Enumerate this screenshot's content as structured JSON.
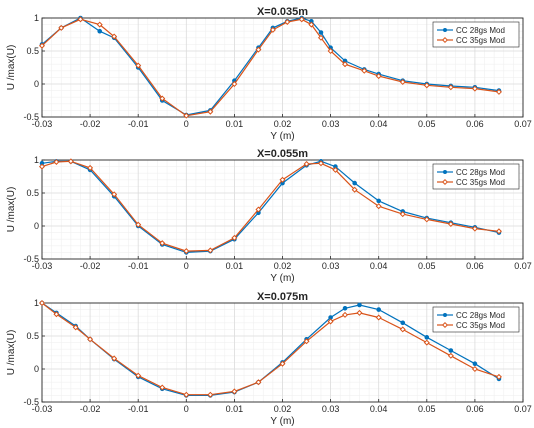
{
  "chart_data": [
    {
      "type": "line",
      "title": "X=0.035m",
      "xlabel": "Y (m)",
      "ylabel": "U /max(U)",
      "xlim": [
        -0.03,
        0.07
      ],
      "ylim": [
        -0.5,
        1
      ],
      "xticks": [
        "-0.03",
        "-0.02",
        "-0.01",
        "0",
        "0.01",
        "0.02",
        "0.03",
        "0.04",
        "0.05",
        "0.06",
        "0.07"
      ],
      "yticks": [
        "-0.5",
        "0",
        "0.5",
        "1"
      ],
      "grid": true,
      "legend_position": "top-right",
      "series": [
        {
          "name": "CC 28gs Mod",
          "color": "#0072BD",
          "marker": "circle",
          "x": [
            -0.03,
            -0.026,
            -0.022,
            -0.018,
            -0.015,
            -0.01,
            -0.005,
            0,
            0.005,
            0.01,
            0.015,
            0.018,
            0.021,
            0.024,
            0.026,
            0.028,
            0.03,
            0.033,
            0.037,
            0.04,
            0.045,
            0.05,
            0.055,
            0.06,
            0.065
          ],
          "y": [
            0.6,
            0.85,
            1.0,
            0.8,
            0.7,
            0.25,
            -0.25,
            -0.47,
            -0.4,
            0.05,
            0.55,
            0.85,
            0.95,
            1.0,
            0.95,
            0.78,
            0.55,
            0.35,
            0.22,
            0.15,
            0.05,
            0.0,
            -0.03,
            -0.05,
            -0.1
          ]
        },
        {
          "name": "CC 35gs Mod",
          "color": "#D95319",
          "marker": "diamond",
          "x": [
            -0.03,
            -0.026,
            -0.022,
            -0.018,
            -0.015,
            -0.01,
            -0.005,
            0,
            0.005,
            0.01,
            0.015,
            0.018,
            0.021,
            0.024,
            0.026,
            0.028,
            0.03,
            0.033,
            0.037,
            0.04,
            0.045,
            0.05,
            0.055,
            0.06,
            0.065
          ],
          "y": [
            0.58,
            0.85,
            0.98,
            0.9,
            0.72,
            0.28,
            -0.22,
            -0.48,
            -0.42,
            0.0,
            0.52,
            0.82,
            0.94,
            0.98,
            0.9,
            0.7,
            0.5,
            0.3,
            0.2,
            0.12,
            0.03,
            -0.02,
            -0.05,
            -0.07,
            -0.12
          ]
        }
      ]
    },
    {
      "type": "line",
      "title": "X=0.055m",
      "xlabel": "Y (m)",
      "ylabel": "U /max(U)",
      "xlim": [
        -0.03,
        0.07
      ],
      "ylim": [
        -0.5,
        1
      ],
      "xticks": [
        "-0.03",
        "-0.02",
        "-0.01",
        "0",
        "0.01",
        "0.02",
        "0.03",
        "0.04",
        "0.05",
        "0.06",
        "0.07"
      ],
      "yticks": [
        "-0.5",
        "0",
        "0.5",
        "1"
      ],
      "grid": true,
      "legend_position": "top-right",
      "series": [
        {
          "name": "CC 28gs Mod",
          "color": "#0072BD",
          "marker": "circle",
          "x": [
            -0.03,
            -0.027,
            -0.024,
            -0.02,
            -0.015,
            -0.01,
            -0.005,
            0,
            0.005,
            0.01,
            0.015,
            0.02,
            0.025,
            0.028,
            0.031,
            0.035,
            0.04,
            0.045,
            0.05,
            0.055,
            0.06,
            0.065
          ],
          "y": [
            0.95,
            0.98,
            0.98,
            0.85,
            0.45,
            0.0,
            -0.28,
            -0.4,
            -0.38,
            -0.2,
            0.2,
            0.65,
            0.92,
            0.98,
            0.9,
            0.65,
            0.38,
            0.22,
            0.12,
            0.05,
            -0.02,
            -0.1
          ]
        },
        {
          "name": "CC 35gs Mod",
          "color": "#D95319",
          "marker": "diamond",
          "x": [
            -0.03,
            -0.027,
            -0.024,
            -0.02,
            -0.015,
            -0.01,
            -0.005,
            0,
            0.005,
            0.01,
            0.015,
            0.02,
            0.025,
            0.028,
            0.031,
            0.035,
            0.04,
            0.045,
            0.05,
            0.055,
            0.06,
            0.065
          ],
          "y": [
            0.9,
            0.97,
            0.98,
            0.88,
            0.48,
            0.02,
            -0.26,
            -0.38,
            -0.37,
            -0.18,
            0.25,
            0.7,
            0.94,
            0.95,
            0.85,
            0.55,
            0.3,
            0.18,
            0.1,
            0.03,
            -0.04,
            -0.08
          ]
        }
      ]
    },
    {
      "type": "line",
      "title": "X=0.075m",
      "xlabel": "Y (m)",
      "ylabel": "U /max(U)",
      "xlim": [
        -0.03,
        0.07
      ],
      "ylim": [
        -0.5,
        1
      ],
      "xticks": [
        "-0.03",
        "-0.02",
        "-0.01",
        "0",
        "0.01",
        "0.02",
        "0.03",
        "0.04",
        "0.05",
        "0.06",
        "0.07"
      ],
      "yticks": [
        "-0.5",
        "0",
        "0.5",
        "1"
      ],
      "grid": true,
      "legend_position": "top-right",
      "series": [
        {
          "name": "CC 28gs Mod",
          "color": "#0072BD",
          "marker": "circle",
          "x": [
            -0.03,
            -0.027,
            -0.023,
            -0.02,
            -0.015,
            -0.01,
            -0.005,
            0,
            0.005,
            0.01,
            0.015,
            0.02,
            0.025,
            0.03,
            0.033,
            0.036,
            0.04,
            0.045,
            0.05,
            0.055,
            0.06,
            0.065
          ],
          "y": [
            1.0,
            0.85,
            0.65,
            0.45,
            0.15,
            -0.12,
            -0.3,
            -0.4,
            -0.4,
            -0.35,
            -0.2,
            0.1,
            0.45,
            0.78,
            0.92,
            0.97,
            0.9,
            0.7,
            0.48,
            0.28,
            0.08,
            -0.15
          ]
        },
        {
          "name": "CC 35gs Mod",
          "color": "#D95319",
          "marker": "diamond",
          "x": [
            -0.03,
            -0.027,
            -0.023,
            -0.02,
            -0.015,
            -0.01,
            -0.005,
            0,
            0.005,
            0.01,
            0.015,
            0.02,
            0.025,
            0.03,
            0.033,
            0.036,
            0.04,
            0.045,
            0.05,
            0.055,
            0.06,
            0.065
          ],
          "y": [
            1.0,
            0.83,
            0.63,
            0.45,
            0.16,
            -0.1,
            -0.28,
            -0.39,
            -0.39,
            -0.34,
            -0.2,
            0.08,
            0.42,
            0.72,
            0.82,
            0.85,
            0.78,
            0.6,
            0.4,
            0.2,
            0.0,
            -0.12
          ]
        }
      ]
    }
  ]
}
